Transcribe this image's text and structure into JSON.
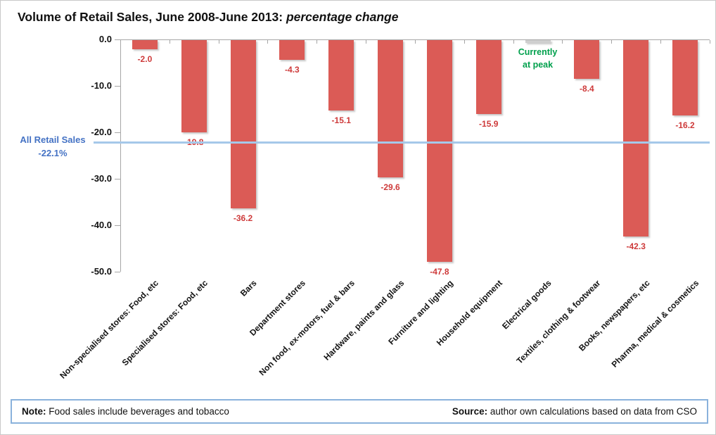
{
  "title": {
    "main": "Volume of Retail Sales, June 2008-June 2013:",
    "emphasis": "percentage change"
  },
  "chart_data": {
    "type": "bar",
    "title": "Volume of Retail Sales, June 2008-June 2013: percentage change",
    "categories": [
      "Non-specialised stores: Food, etc",
      "Specialised stores: Food, etc",
      "Bars",
      "Department stores",
      "Non food, ex-motors, fuel & bars",
      "Hardware, paints and glass",
      "Furniture and lighting",
      "Household equipment",
      "Electrical goods",
      "Textiles, clothing & footwear",
      "Books, newspapers, etc",
      "Pharma, medical & cosmetics"
    ],
    "values": [
      -2.0,
      -19.8,
      -36.2,
      -4.3,
      -15.1,
      -29.6,
      -47.8,
      -15.9,
      0.0,
      -8.4,
      -42.3,
      -16.2
    ],
    "value_labels": [
      "-2.0",
      "-19.8",
      "-36.2",
      "-4.3",
      "-15.1",
      "-29.6",
      "-47.8",
      "-15.9",
      "",
      "-8.4",
      "-42.3",
      "-16.2"
    ],
    "y_ticks": [
      "0.0",
      "-10.0",
      "-20.0",
      "-30.0",
      "-40.0",
      "-50.0"
    ],
    "y_tick_values": [
      0,
      -10,
      -20,
      -30,
      -40,
      -50
    ],
    "ylim": [
      -50,
      0
    ],
    "grid": "off",
    "legend": "none",
    "reference_line": {
      "value": -22.1,
      "label_line1": "All Retail Sales",
      "label_line2": "-22.1%"
    },
    "annotation": {
      "category_index": 8,
      "line1": "Currently",
      "line2": "at peak"
    },
    "colors": {
      "bar": "#db5b56",
      "value_label": "#ce3a3a",
      "reference_line": "#a5c8e9",
      "reference_label": "#4472c4",
      "annotation": "#00a04c",
      "axis": "#a6a6a6"
    }
  },
  "footer": {
    "note_label": "Note:",
    "note_text": " Food sales include beverages and tobacco",
    "source_label": "Source:",
    "source_text": " author own calculations based on data from CSO"
  }
}
